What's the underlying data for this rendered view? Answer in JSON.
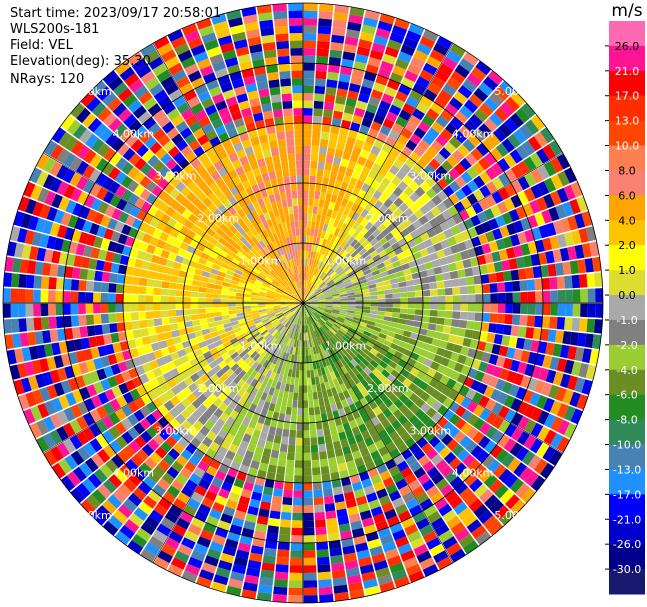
{
  "header": {
    "start_time_label": "Start time:",
    "start_time": "2023/09/17 20:58:01",
    "instrument": "WLS200s-181",
    "field_label": "Field:",
    "field": "VEL",
    "elevation_label": "Elevation(deg):",
    "elevation": "35.30",
    "nrays_label": "NRays:",
    "nrays": "120"
  },
  "colorbar": {
    "unit": "m/s",
    "ticks": [
      "26.0",
      "21.0",
      "17.0",
      "13.0",
      "10.0",
      "8.0",
      "6.0",
      "4.0",
      "2.0",
      "1.0",
      "0.0",
      "-1.0",
      "-2.0",
      "-4.0",
      "-6.0",
      "-8.0",
      "-10.0",
      "-13.0",
      "-17.0",
      "-21.0",
      "-26.0",
      "-30.0"
    ],
    "colors": [
      "#ff69b4",
      "#ff1493",
      "#ff0000",
      "#ff2d00",
      "#ff4500",
      "#ff7f50",
      "#fa8072",
      "#ffa500",
      "#ffc400",
      "#ffff00",
      "#dddd30",
      "#a9a9a9",
      "#808080",
      "#9acd32",
      "#6b8e23",
      "#228b22",
      "#2e8b57",
      "#4682b4",
      "#1e90ff",
      "#0000ff",
      "#0000cd",
      "#00008b",
      "#191970"
    ]
  },
  "chart_data": {
    "type": "ppi",
    "field": "VEL",
    "units": "m/s",
    "n_rays": 120,
    "range_rings_km": [
      1.0,
      2.0,
      3.0,
      4.0,
      5.0
    ],
    "range_ring_labels": [
      "1.00km",
      "2.00km",
      "3.00km",
      "4.00km",
      "5.00km"
    ],
    "value_scale": [
      -30.0,
      26.0
    ],
    "velocity_by_sector": [
      {
        "sector": "N",
        "value": 6.0
      },
      {
        "sector": "NE",
        "value": 0.0
      },
      {
        "sector": "E",
        "value": -2.0
      },
      {
        "sector": "SE",
        "value": -6.0
      },
      {
        "sector": "S",
        "value": -4.0
      },
      {
        "sector": "SW",
        "value": 0.0
      },
      {
        "sector": "W",
        "value": 2.0
      },
      {
        "sector": "NW",
        "value": 4.0
      }
    ],
    "far_range_noise_beyond_km": 3.0
  }
}
